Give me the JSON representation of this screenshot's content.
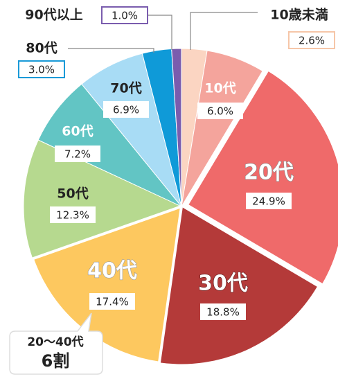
{
  "chart_data": {
    "type": "pie",
    "categories": [
      "10歳未満",
      "10代",
      "20代",
      "30代",
      "40代",
      "50代",
      "60代",
      "70代",
      "80代",
      "90代以上"
    ],
    "values": [
      2.6,
      6.0,
      24.9,
      18.8,
      17.4,
      12.3,
      7.2,
      6.9,
      3.0,
      1.0
    ],
    "value_labels": [
      "2.6%",
      "6.0%",
      "24.9%",
      "18.8%",
      "17.4%",
      "12.3%",
      "7.2%",
      "6.9%",
      "3.0%",
      "1.0%"
    ],
    "colors": [
      "#fbd5c2",
      "#f4a49c",
      "#ef6a6a",
      "#b43a39",
      "#fdc85f",
      "#b6d98f",
      "#62c5c4",
      "#a8dcf5",
      "#0f9ad8",
      "#7a5cae"
    ],
    "annotations": [
      "20～40代",
      "6割"
    ]
  }
}
